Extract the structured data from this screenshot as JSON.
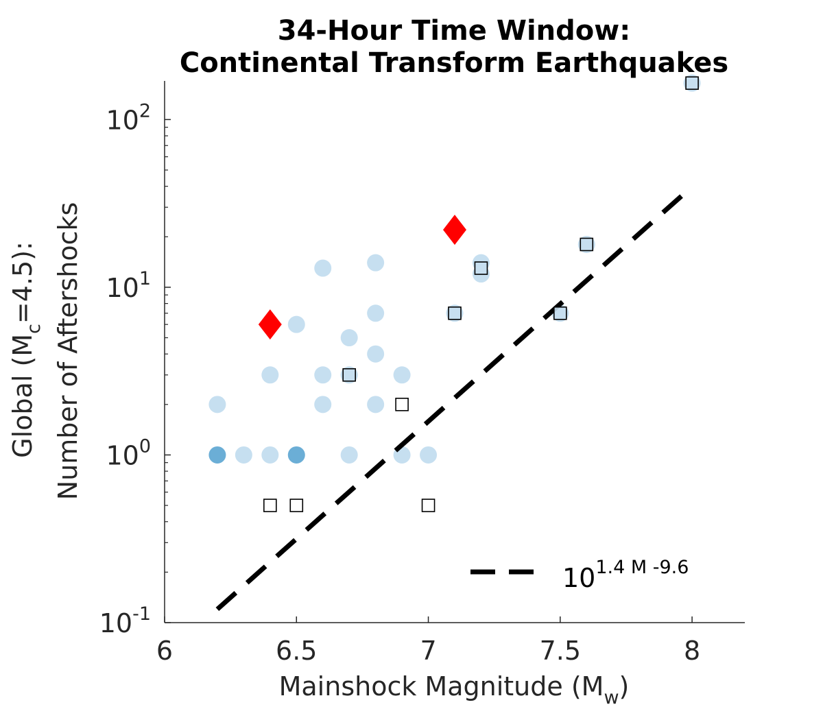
{
  "chart_data": {
    "type": "scatter",
    "title_lines": [
      "34-Hour Time Window:",
      "Continental Transform Earthquakes"
    ],
    "xlabel": {
      "main": "Mainshock Magnitude (M",
      "sub": "w",
      "close": ")"
    },
    "ylabel": {
      "line1_main": "Global (M",
      "line1_sub": "c",
      "line1_rest": "=4.5):",
      "line2": "Number of Aftershocks"
    },
    "xlim": [
      6,
      8.2
    ],
    "ylim": [
      0.1,
      170
    ],
    "yscale": "log",
    "x_ticks": [
      {
        "value": 6,
        "label": "6"
      },
      {
        "value": 6.5,
        "label": "6.5"
      },
      {
        "value": 7,
        "label": "7"
      },
      {
        "value": 7.5,
        "label": "7.5"
      },
      {
        "value": 8,
        "label": "8"
      }
    ],
    "y_ticks": [
      {
        "value": 0.1,
        "base": "10",
        "exp": "-1"
      },
      {
        "value": 1,
        "base": "10",
        "exp": "0"
      },
      {
        "value": 10,
        "base": "10",
        "exp": "1"
      },
      {
        "value": 100,
        "base": "10",
        "exp": "2"
      }
    ],
    "grid": false,
    "colors": {
      "circle": "#c6dff0",
      "circle_dense": "#6baed6",
      "square_fill": "#c6dff0",
      "diamond": "#ff0000",
      "fit_line": "#000000",
      "axis": "#262626"
    },
    "circles": [
      {
        "x": 6.2,
        "y": 2
      },
      {
        "x": 6.2,
        "y": 1,
        "dense": true
      },
      {
        "x": 6.3,
        "y": 1
      },
      {
        "x": 6.4,
        "y": 3
      },
      {
        "x": 6.4,
        "y": 1
      },
      {
        "x": 6.5,
        "y": 6
      },
      {
        "x": 6.5,
        "y": 1,
        "dense": true
      },
      {
        "x": 6.6,
        "y": 13
      },
      {
        "x": 6.6,
        "y": 3
      },
      {
        "x": 6.6,
        "y": 2
      },
      {
        "x": 6.7,
        "y": 5
      },
      {
        "x": 6.7,
        "y": 3
      },
      {
        "x": 6.7,
        "y": 1
      },
      {
        "x": 6.8,
        "y": 14
      },
      {
        "x": 6.8,
        "y": 7
      },
      {
        "x": 6.8,
        "y": 4
      },
      {
        "x": 6.8,
        "y": 2
      },
      {
        "x": 6.9,
        "y": 3
      },
      {
        "x": 6.9,
        "y": 1
      },
      {
        "x": 7.0,
        "y": 1
      },
      {
        "x": 7.1,
        "y": 7
      },
      {
        "x": 7.2,
        "y": 14
      },
      {
        "x": 7.2,
        "y": 12
      },
      {
        "x": 7.5,
        "y": 7
      },
      {
        "x": 7.6,
        "y": 18
      },
      {
        "x": 8.0,
        "y": 165
      }
    ],
    "squares": [
      {
        "x": 6.4,
        "y": 0.5,
        "filled": false
      },
      {
        "x": 6.5,
        "y": 0.5,
        "filled": false
      },
      {
        "x": 6.7,
        "y": 3,
        "filled": true
      },
      {
        "x": 6.9,
        "y": 2,
        "filled": false
      },
      {
        "x": 7.0,
        "y": 0.5,
        "filled": false
      },
      {
        "x": 7.1,
        "y": 7,
        "filled": true
      },
      {
        "x": 7.2,
        "y": 13,
        "filled": true
      },
      {
        "x": 7.5,
        "y": 7,
        "filled": true
      },
      {
        "x": 7.6,
        "y": 18,
        "filled": true
      },
      {
        "x": 8.0,
        "y": 165,
        "filled": true
      }
    ],
    "diamonds": [
      {
        "x": 6.4,
        "y": 6
      },
      {
        "x": 7.1,
        "y": 22
      }
    ],
    "fit_line": {
      "a": 1.4,
      "b": -9.6,
      "x_range": [
        6.2,
        8.0
      ],
      "legend": {
        "base": "10",
        "exp": "1.4 M -9.6"
      }
    }
  }
}
